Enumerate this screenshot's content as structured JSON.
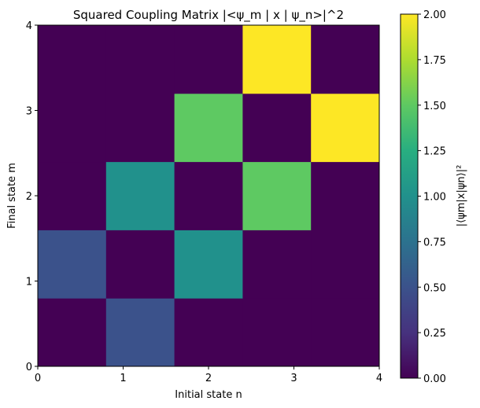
{
  "chart_data": {
    "type": "heatmap",
    "title": "Squared Coupling Matrix |<ψ_m | x | ψ_n>|^2",
    "xlabel": "Initial state n",
    "ylabel": "Final state m",
    "colorbar_label": "|⟨ψm|x|ψn⟩|²",
    "colormap": "viridis",
    "xlim": [
      0,
      4
    ],
    "ylim": [
      0,
      4
    ],
    "x_ticks": [
      "0",
      "1",
      "2",
      "3",
      "4"
    ],
    "y_ticks": [
      "0",
      "1",
      "2",
      "3",
      "4"
    ],
    "color_range": [
      0,
      2
    ],
    "colorbar_ticks": [
      "0.00",
      "0.25",
      "0.50",
      "0.75",
      "1.00",
      "1.25",
      "1.50",
      "1.75",
      "2.00"
    ],
    "rows_m": [
      0,
      1,
      2,
      3,
      4
    ],
    "cols_n": [
      0,
      1,
      2,
      3,
      4
    ],
    "values": [
      [
        0.0,
        0.5,
        0.0,
        0.0,
        0.0
      ],
      [
        0.5,
        0.0,
        1.0,
        0.0,
        0.0
      ],
      [
        0.0,
        1.0,
        0.0,
        1.5,
        0.0
      ],
      [
        0.0,
        0.0,
        1.5,
        0.0,
        2.0
      ],
      [
        0.0,
        0.0,
        0.0,
        2.0,
        0.0
      ]
    ]
  }
}
